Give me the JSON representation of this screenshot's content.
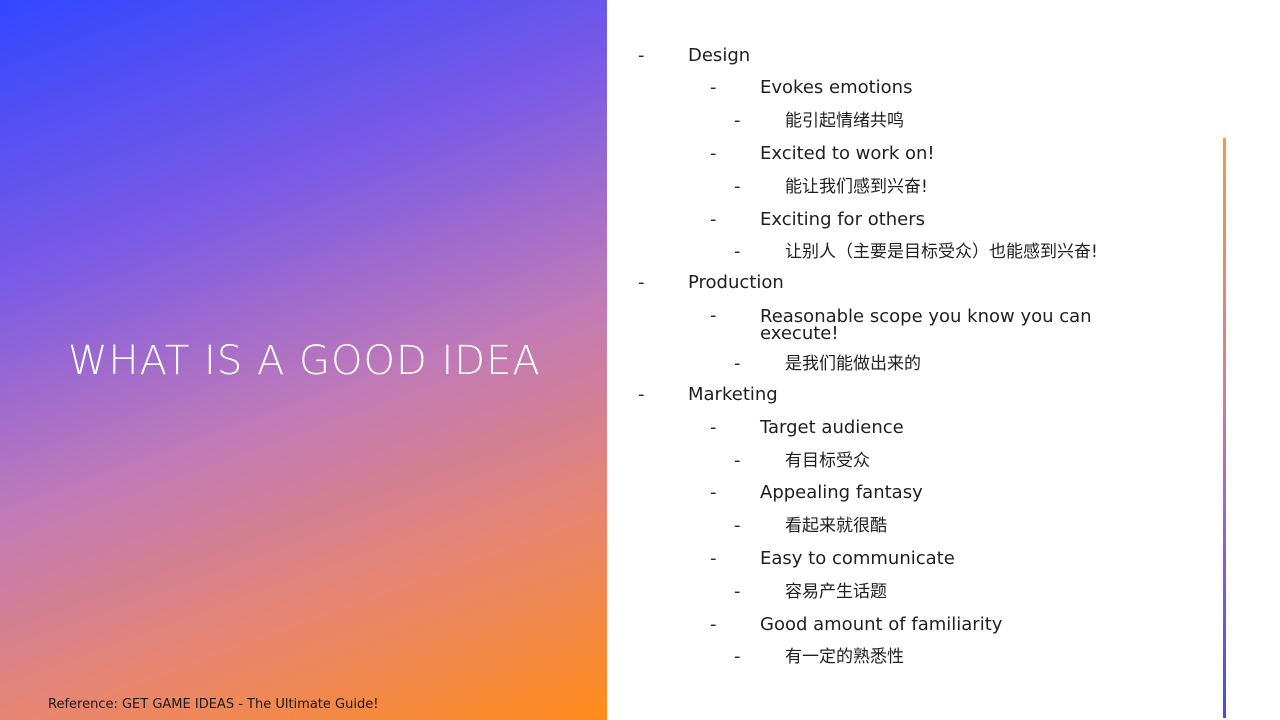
{
  "slide": {
    "title": "WHAT IS A GOOD IDEA",
    "reference": "Reference: GET GAME IDEAS - The Ultimate Guide!",
    "colors": {
      "gradient_start": "#3347ff",
      "gradient_end": "#ff8c1a",
      "accent_line": "#8a62d8"
    }
  },
  "bullets": [
    {
      "dash": "-",
      "text": "Design"
    },
    {
      "dash": "-",
      "text": "Evokes emotions"
    },
    {
      "dash": "-",
      "text": "能引起情绪共鸣"
    },
    {
      "dash": "-",
      "text": "Excited to work on!"
    },
    {
      "dash": "-",
      "text": "能让我们感到兴奋!"
    },
    {
      "dash": "-",
      "text": "Exciting for others"
    },
    {
      "dash": "-",
      "text": "让别人（主要是目标受众）也能感到兴奋!"
    },
    {
      "dash": "-",
      "text": "Production"
    },
    {
      "dash": "-",
      "text": "Reasonable scope you know you can execute!"
    },
    {
      "dash": "-",
      "text": "是我们能做出来的"
    },
    {
      "dash": "-",
      "text": "Marketing"
    },
    {
      "dash": "-",
      "text": "Target audience"
    },
    {
      "dash": "-",
      "text": "有目标受众"
    },
    {
      "dash": "-",
      "text": "Appealing fantasy"
    },
    {
      "dash": "-",
      "text": "看起来就很酷"
    },
    {
      "dash": "-",
      "text": "Easy to communicate"
    },
    {
      "dash": "-",
      "text": "容易产生话题"
    },
    {
      "dash": "-",
      "text": "Good amount of familiarity"
    },
    {
      "dash": "-",
      "text": "有一定的熟悉性"
    }
  ]
}
